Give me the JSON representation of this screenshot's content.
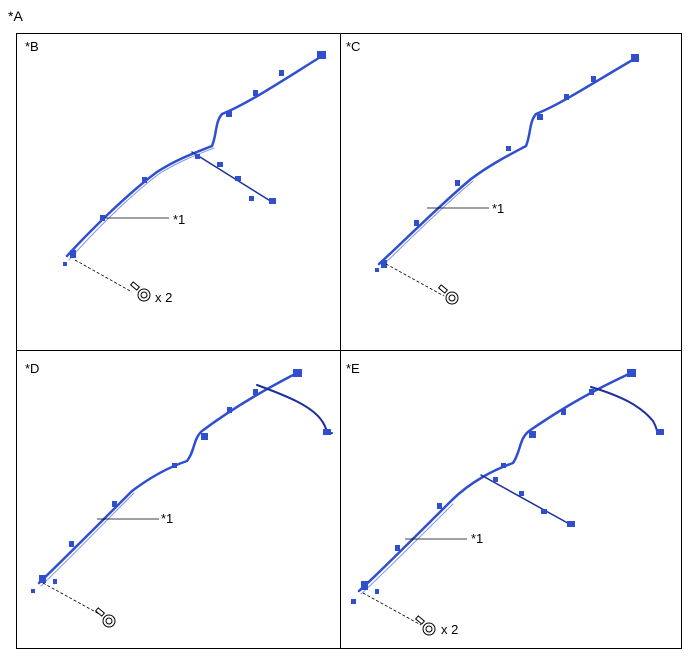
{
  "figure_label": "*A",
  "panels": [
    {
      "label": "*B",
      "callout": "*1",
      "qty": "x 2"
    },
    {
      "label": "*C",
      "callout": "*1",
      "qty": ""
    },
    {
      "label": "*D",
      "callout": "*1",
      "qty": ""
    },
    {
      "label": "*E",
      "callout": "*1",
      "qty": "x 2"
    }
  ],
  "colors": {
    "harness": "#2f4fcf",
    "harness_dark": "#1d2f9a",
    "line": "#000000"
  },
  "icons": [
    "wire-harness-icon",
    "bolt-icon"
  ]
}
